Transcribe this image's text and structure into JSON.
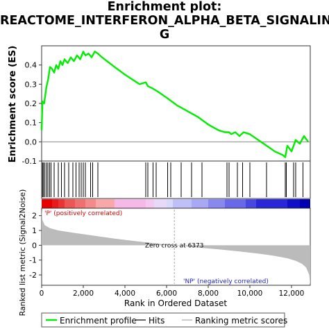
{
  "title": {
    "line1": "Enrichment plot:",
    "line2": "REACTOME_INTERFERON_ALPHA_BETA_SIGNALIN",
    "line3": "G"
  },
  "colors": {
    "es_line": "#00ee00",
    "hits": "#000000",
    "metric_fill": "#bbbbbb",
    "panel_border": "#333333"
  },
  "legend": {
    "enrichment_profile": "Enrichment profile",
    "hits": "Hits",
    "ranking_metric": "Ranking metric scores"
  },
  "chart_data": [
    {
      "type": "line",
      "ylabel": "Enrichment score (ES)",
      "ylim": [
        -0.1,
        0.5
      ],
      "y_ticks": [
        "0.4",
        "0.3",
        "0.2",
        "0.1",
        "0.0",
        "-0.1"
      ],
      "series": [
        {
          "name": "Enrichment profile",
          "x": [
            0,
            40,
            120,
            220,
            320,
            400,
            500,
            600,
            700,
            800,
            900,
            1000,
            1100,
            1250,
            1400,
            1550,
            1700,
            1850,
            2000,
            2100,
            2250,
            2400,
            2550,
            2700,
            2900,
            3500,
            4000,
            4700,
            5000,
            5100,
            5300,
            5600,
            6000,
            6500,
            7000,
            7500,
            8000,
            8500,
            8800,
            9000,
            9100,
            9300,
            9500,
            9700,
            10000,
            10400,
            10800,
            11200,
            11600,
            11700,
            11800,
            12000,
            12200,
            12400,
            12600,
            12800
          ],
          "y": [
            0.06,
            0.21,
            0.2,
            0.28,
            0.33,
            0.39,
            0.38,
            0.36,
            0.4,
            0.38,
            0.42,
            0.4,
            0.43,
            0.41,
            0.44,
            0.42,
            0.45,
            0.43,
            0.47,
            0.45,
            0.46,
            0.44,
            0.47,
            0.46,
            0.44,
            0.39,
            0.35,
            0.3,
            0.31,
            0.29,
            0.28,
            0.26,
            0.23,
            0.19,
            0.16,
            0.13,
            0.09,
            0.06,
            0.05,
            0.05,
            0.04,
            0.05,
            0.03,
            0.05,
            0.04,
            0.01,
            -0.02,
            -0.05,
            -0.07,
            -0.08,
            -0.02,
            -0.05,
            0.01,
            -0.01,
            0.03,
            0.0
          ]
        }
      ]
    },
    {
      "type": "scatter",
      "series": [
        {
          "name": "Hits",
          "x": [
            40,
            80,
            150,
            230,
            300,
            380,
            450,
            600,
            800,
            950,
            1100,
            1300,
            1500,
            1650,
            1800,
            1900,
            2000,
            2100,
            2350,
            2450,
            2700,
            5000,
            5100,
            5350,
            5500,
            6050,
            6200,
            6700,
            7200,
            7700,
            8900,
            9000,
            9400,
            9650,
            10000,
            10800,
            11700,
            11750,
            12100,
            12200,
            12550
          ]
        }
      ]
    },
    {
      "type": "area",
      "xlabel": "Rank in Ordered Dataset",
      "ylabel": "Ranked list metric (Signal2Noise)",
      "ylim": [
        -2.7,
        2.5
      ],
      "y_ticks": [
        "2",
        "1",
        "0",
        "-1",
        "-2"
      ],
      "x_ticks": [
        "0",
        "2,000",
        "4,000",
        "6,000",
        "8,000",
        "10,000",
        "12,000"
      ],
      "xlim": [
        0,
        12900
      ],
      "series": [
        {
          "name": "Ranking metric scores",
          "x": [
            0,
            40,
            150,
            400,
            800,
            1500,
            2500,
            3500,
            4500,
            5500,
            6373,
            7500,
            8500,
            9500,
            10500,
            11200,
            11800,
            12200,
            12500,
            12700,
            12850,
            12900
          ],
          "y": [
            2.4,
            1.7,
            1.35,
            1.15,
            1.0,
            0.85,
            0.65,
            0.45,
            0.28,
            0.12,
            0.0,
            -0.15,
            -0.28,
            -0.42,
            -0.58,
            -0.72,
            -0.88,
            -1.05,
            -1.25,
            -1.5,
            -2.0,
            -2.7
          ]
        }
      ],
      "annotations": {
        "zero_cross": "Zero cross at 6373",
        "zero_cross_x": 6373,
        "positive": "'P' (positively correlated)",
        "negative": "'NP' (negatively correlated)"
      }
    }
  ]
}
